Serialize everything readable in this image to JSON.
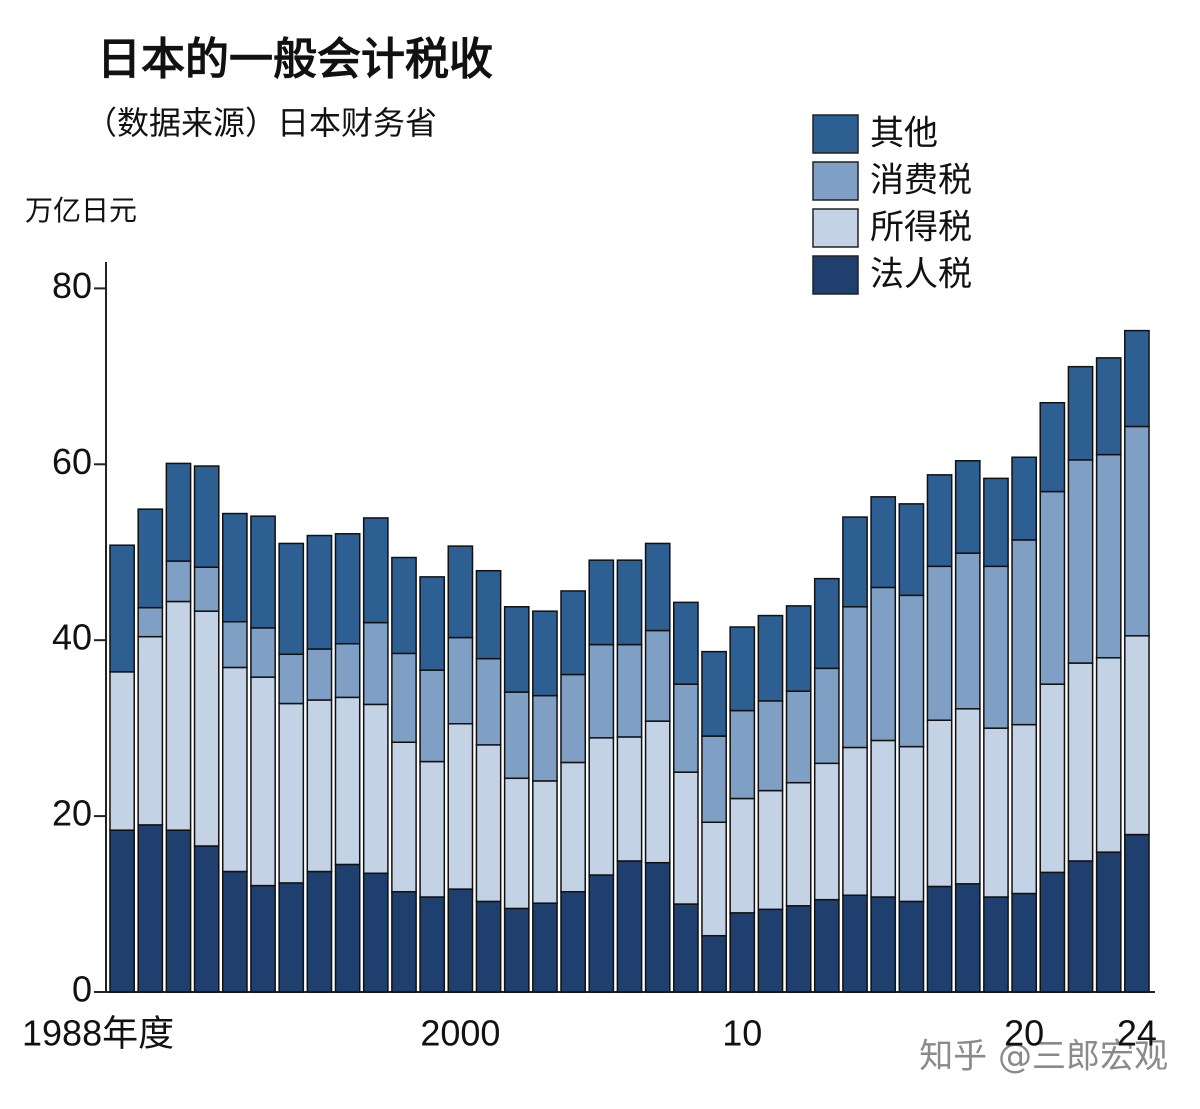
{
  "chart_data": {
    "type": "stacked_bar",
    "title": "日本的一般会计税收",
    "subtitle": "（数据来源）日本财务省",
    "y_label": "万亿日元",
    "watermark": "知乎 @三郎宏观",
    "categories": [
      "1988年度",
      null,
      null,
      null,
      null,
      null,
      null,
      null,
      null,
      null,
      null,
      null,
      "2000",
      null,
      null,
      null,
      null,
      null,
      null,
      null,
      null,
      null,
      "10",
      null,
      null,
      null,
      null,
      null,
      null,
      null,
      null,
      null,
      "20",
      null,
      null,
      null,
      "24"
    ],
    "series": [
      {
        "name": "法人税",
        "color": "#1f3f6e",
        "values": [
          18.4,
          19.0,
          18.4,
          16.6,
          13.7,
          12.1,
          12.4,
          13.7,
          14.5,
          13.5,
          11.4,
          10.8,
          11.7,
          10.3,
          9.5,
          10.1,
          11.4,
          13.3,
          14.9,
          14.7,
          10.0,
          6.4,
          9.0,
          9.4,
          9.8,
          10.5,
          11.0,
          10.8,
          10.3,
          12.0,
          12.3,
          10.8,
          11.2,
          13.6,
          14.9,
          15.9,
          17.9
        ]
      },
      {
        "name": "所得税",
        "color": "#c3d3e5",
        "values": [
          18.0,
          21.4,
          26.0,
          26.7,
          23.2,
          23.7,
          20.4,
          19.5,
          19.0,
          19.2,
          17.0,
          15.4,
          18.8,
          17.8,
          14.8,
          13.9,
          14.7,
          15.6,
          14.1,
          16.1,
          15.0,
          12.9,
          13.0,
          13.5,
          14.0,
          15.5,
          16.8,
          17.8,
          17.6,
          18.9,
          19.9,
          19.2,
          19.2,
          21.4,
          22.5,
          22.1,
          22.6
        ]
      },
      {
        "name": "消费税",
        "color": "#7f9fc4",
        "values": [
          0,
          3.3,
          4.6,
          5.0,
          5.2,
          5.6,
          5.6,
          5.8,
          6.1,
          9.3,
          10.1,
          10.4,
          9.8,
          9.8,
          9.8,
          9.7,
          10.0,
          10.6,
          10.5,
          10.3,
          10.0,
          9.8,
          10.0,
          10.2,
          10.4,
          10.8,
          16.0,
          17.4,
          17.2,
          17.5,
          17.7,
          18.4,
          21.0,
          21.9,
          23.1,
          23.1,
          23.8
        ]
      },
      {
        "name": "其他",
        "color": "#2e5f92",
        "values": [
          14.4,
          11.2,
          11.1,
          11.5,
          12.3,
          12.7,
          12.6,
          12.9,
          12.5,
          11.9,
          10.9,
          10.6,
          10.4,
          10.0,
          9.7,
          9.6,
          9.5,
          9.6,
          9.6,
          9.9,
          9.3,
          9.6,
          9.5,
          9.7,
          9.7,
          10.2,
          10.2,
          10.3,
          10.4,
          10.4,
          10.5,
          10.0,
          9.4,
          10.1,
          10.6,
          11.0,
          10.9
        ]
      }
    ],
    "ylim": [
      0,
      83
    ],
    "yticks": [
      0,
      20,
      40,
      60,
      80
    ],
    "legend": "top-right"
  }
}
